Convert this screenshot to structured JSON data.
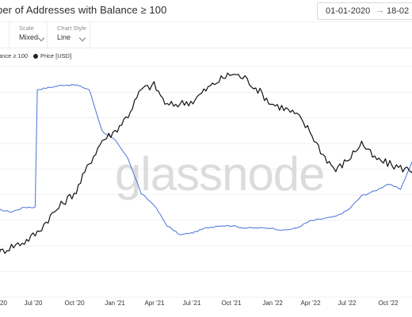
{
  "header": {
    "title": "ber of Addresses with Balance ≥ 100",
    "date_start": "01-01-2020",
    "date_separator": "→",
    "date_end": "18-02"
  },
  "controls": {
    "partial_value": "",
    "scale_label": "Scale",
    "scale_value": "Mixed",
    "chart_style_label": "Chart Style",
    "chart_style_value": "Line"
  },
  "legend": {
    "series_a": "ance ≥ 100",
    "series_b": "Price [USD]"
  },
  "watermark": "glassnode",
  "colors": {
    "addresses_line": "#4a72d9",
    "price_line": "#111111",
    "watermark": "#bfbfbf"
  },
  "chart_data": {
    "type": "line",
    "title": "ber of Addresses with Balance ≥ 100",
    "x": [
      "2020-04-01",
      "2020-05-01",
      "2020-06-01",
      "2020-07-01",
      "2020-08-01",
      "2020-09-01",
      "2020-10-01",
      "2020-11-01",
      "2020-12-01",
      "2021-01-01",
      "2021-02-01",
      "2021-03-01",
      "2021-04-01",
      "2021-05-01",
      "2021-06-01",
      "2021-07-01",
      "2021-08-01",
      "2021-09-01",
      "2021-10-01",
      "2021-11-01",
      "2021-12-01",
      "2022-01-01",
      "2022-02-01",
      "2022-03-01",
      "2022-04-01",
      "2022-05-01",
      "2022-06-01",
      "2022-07-01",
      "2022-08-01",
      "2022-09-01",
      "2022-10-01",
      "2022-11-01",
      "2022-12-01"
    ],
    "x_ticks": [
      "20",
      "Jul '20",
      "Oct '20",
      "Jan '21",
      "Apr '21",
      "Jul '21",
      "Oct '21",
      "Jan '22",
      "Apr '22",
      "Jul '22",
      "Oct '22"
    ],
    "series": [
      {
        "name": "ance ≥ 100",
        "values": [
          0.38,
          0.37,
          0.39,
          0.9,
          0.91,
          0.92,
          0.92,
          0.9,
          0.72,
          0.68,
          0.6,
          0.45,
          0.4,
          0.31,
          0.27,
          0.28,
          0.3,
          0.31,
          0.31,
          0.3,
          0.3,
          0.3,
          0.29,
          0.3,
          0.33,
          0.34,
          0.35,
          0.38,
          0.44,
          0.46,
          0.49,
          0.47,
          0.6
        ]
      },
      {
        "name": "Price [USD]",
        "values": [
          0.19,
          0.22,
          0.24,
          0.28,
          0.35,
          0.41,
          0.46,
          0.58,
          0.68,
          0.72,
          0.79,
          0.9,
          0.92,
          0.83,
          0.84,
          0.85,
          0.9,
          0.94,
          0.97,
          0.95,
          0.9,
          0.84,
          0.82,
          0.79,
          0.72,
          0.62,
          0.55,
          0.6,
          0.67,
          0.6,
          0.58,
          0.56,
          0.55
        ]
      }
    ],
    "yscale": "mixed",
    "ylim": [
      0,
      1
    ],
    "grid": true,
    "legend_position": "top-left"
  }
}
